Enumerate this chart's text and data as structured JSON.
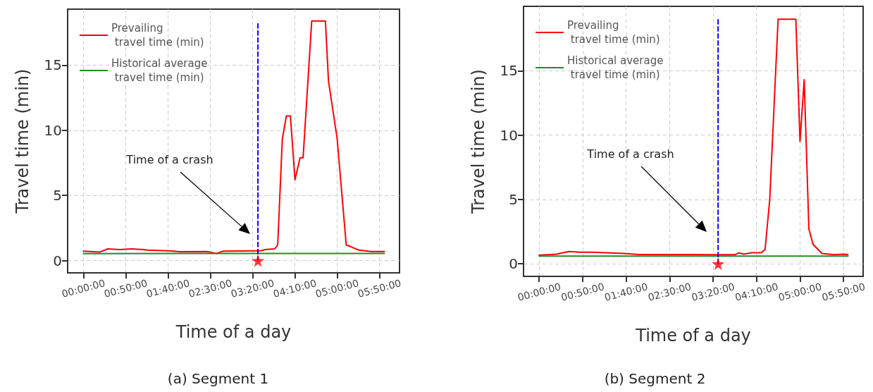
{
  "chart_data": [
    {
      "type": "line",
      "title": "(a) Segment 1",
      "xlabel": "Time of a day",
      "ylabel": "Travel time (min)",
      "xlim": [
        -0.31,
        6.23
      ],
      "ylim": [
        -0.94,
        19.3
      ],
      "xticks": [
        {
          "value": 0,
          "label": "00:00:00"
        },
        {
          "value": 0.8333,
          "label": "00:50:00"
        },
        {
          "value": 1.6667,
          "label": "01:40:00"
        },
        {
          "value": 2.5,
          "label": "02:30:00"
        },
        {
          "value": 3.3333,
          "label": "03:20:00"
        },
        {
          "value": 4.1667,
          "label": "04:10:00"
        },
        {
          "value": 5,
          "label": "05:00:00"
        },
        {
          "value": 5.8333,
          "label": "05:50:00"
        }
      ],
      "yticks": [
        0,
        5,
        10,
        15
      ],
      "grid": true,
      "legend": "top left",
      "marker": "none",
      "annotations": [
        "Time of a crash"
      ],
      "series": [
        {
          "name": "Prevailing\n travel time (min)",
          "color": "#ff0000",
          "line_style": "solid",
          "x": [
            0,
            0.32,
            0.48,
            0.72,
            0.95,
            1.18,
            1.27,
            1.68,
            1.92,
            2.43,
            2.62,
            2.75,
            3.35,
            3.5,
            3.58,
            3.77,
            3.83,
            3.92,
            4.0,
            4.08,
            4.17,
            4.27,
            4.33,
            4.5,
            4.77,
            4.83,
            4.93,
            5.0,
            5.18,
            5.25,
            5.43,
            5.67,
            5.93
          ],
          "values": [
            0.72,
            0.65,
            0.9,
            0.85,
            0.9,
            0.85,
            0.8,
            0.75,
            0.68,
            0.7,
            0.55,
            0.72,
            0.75,
            0.75,
            0.85,
            0.9,
            1.2,
            9.3,
            11.1,
            11.1,
            6.2,
            7.9,
            7.9,
            18.4,
            18.4,
            13.8,
            11.2,
            9.4,
            1.2,
            1.1,
            0.8,
            0.7,
            0.7
          ]
        },
        {
          "name": "Historical average\n travel time (min)",
          "color": "#228b22",
          "line_style": "solid",
          "x": [
            0,
            3.0,
            5.93
          ],
          "values": [
            0.53,
            0.55,
            0.55
          ]
        },
        {
          "color": "#0000ff",
          "line_style": "dashed",
          "x": [
            3.44,
            3.44
          ],
          "values": [
            0,
            18.3
          ]
        },
        {
          "type": "scatter",
          "color": "#ff0000",
          "marker": "star",
          "x": [
            3.44
          ],
          "values": [
            0
          ]
        }
      ]
    },
    {
      "type": "line",
      "title": "(b) Segment 2",
      "xlabel": "Time of a day",
      "ylabel": "Travel time (min)",
      "xlim": [
        -0.3,
        6.21
      ],
      "ylim": [
        -0.98,
        20.0
      ],
      "xticks": [
        {
          "value": 0,
          "label": "00:00:00"
        },
        {
          "value": 0.8333,
          "label": "00:50:00"
        },
        {
          "value": 1.6667,
          "label": "01:40:00"
        },
        {
          "value": 2.5,
          "label": "02:30:00"
        },
        {
          "value": 3.3333,
          "label": "03:20:00"
        },
        {
          "value": 4.1667,
          "label": "04:10:00"
        },
        {
          "value": 5,
          "label": "05:00:00"
        },
        {
          "value": 5.8333,
          "label": "05:50:00"
        }
      ],
      "yticks": [
        0,
        5,
        10,
        15
      ],
      "grid": true,
      "legend": "top left",
      "marker": "none",
      "annotations": [
        "Time of a crash"
      ],
      "series": [
        {
          "name": "Prevailing\n travel time (min)",
          "color": "#ff0000",
          "line_style": "solid",
          "x": [
            0,
            0.33,
            0.57,
            0.8,
            1.03,
            1.27,
            1.63,
            1.92,
            2.38,
            2.85,
            3.32,
            3.75,
            3.83,
            3.92,
            4.07,
            4.25,
            4.33,
            4.42,
            4.58,
            4.92,
            5.0,
            5.08,
            5.17,
            5.25,
            5.42,
            5.65,
            5.83,
            5.92
          ],
          "values": [
            0.66,
            0.75,
            0.95,
            0.9,
            0.9,
            0.85,
            0.8,
            0.72,
            0.72,
            0.72,
            0.7,
            0.7,
            0.85,
            0.75,
            0.85,
            0.85,
            1.1,
            5.0,
            19.0,
            19.0,
            9.5,
            14.3,
            2.7,
            1.5,
            0.8,
            0.7,
            0.75,
            0.72
          ]
        },
        {
          "name": "Historical average\n travel time (min)",
          "color": "#228b22",
          "line_style": "solid",
          "x": [
            0,
            3.0,
            5.92
          ],
          "values": [
            0.6,
            0.59,
            0.59
          ]
        },
        {
          "color": "#0000ff",
          "line_style": "dashed",
          "x": [
            3.43,
            3.43
          ],
          "values": [
            0,
            19.0
          ]
        },
        {
          "type": "scatter",
          "color": "#ff0000",
          "marker": "star",
          "x": [
            3.43
          ],
          "values": [
            0
          ]
        }
      ]
    }
  ]
}
